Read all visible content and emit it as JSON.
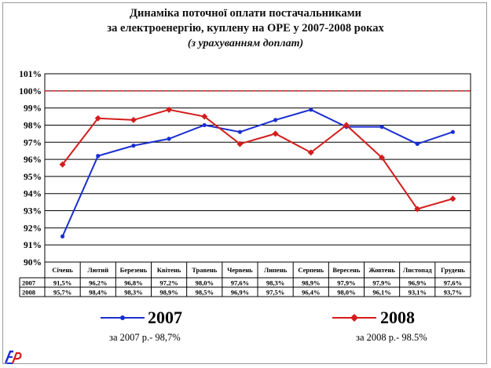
{
  "chart_data": {
    "type": "line",
    "title": "Динаміка поточної оплати постачальниками",
    "subtitle": "за електроенергію, куплену на ОРЕ у 2007-2008 роках",
    "note": "(з урахуванням доплат)",
    "categories": [
      "Січень",
      "Лютий",
      "Березень",
      "Квітень",
      "Травень",
      "Червень",
      "Липень",
      "Серпень",
      "Вересень",
      "Жовтень",
      "Листопад",
      "Грудень"
    ],
    "y_ticks": [
      "90%",
      "91%",
      "92%",
      "93%",
      "94%",
      "95%",
      "96%",
      "97%",
      "98%",
      "99%",
      "100%",
      "101%"
    ],
    "ylim": [
      90,
      101
    ],
    "reference_line": 100,
    "series": [
      {
        "name": "2007",
        "color": "#1a2fd0",
        "values": [
          91.5,
          96.2,
          96.8,
          97.2,
          98.0,
          97.6,
          98.3,
          98.9,
          97.9,
          97.9,
          96.9,
          97.6
        ],
        "labels": [
          "91,5%",
          "96,2%",
          "96,8%",
          "97,2%",
          "98,0%",
          "97,6%",
          "98,3%",
          "98,9%",
          "97,9%",
          "97,9%",
          "96,9%",
          "97,6%"
        ]
      },
      {
        "name": "2008",
        "color": "#d41c1c",
        "values": [
          95.7,
          98.4,
          98.3,
          98.9,
          98.5,
          96.9,
          97.5,
          96.4,
          98.0,
          96.1,
          93.1,
          93.7
        ],
        "labels": [
          "95,7%",
          "98,4%",
          "98,3%",
          "98,9%",
          "98,5%",
          "96,9%",
          "97,5%",
          "96,4%",
          "98,0%",
          "96,1%",
          "93,1%",
          "93,7%"
        ]
      }
    ],
    "grid": true
  },
  "legend": {
    "s2007_label": "2007",
    "s2008_label": "2008",
    "avg_2007": "за 2007 р.- 98,7%",
    "avg_2008": "за 2008 р.- 98.5%"
  },
  "logo": {
    "text": "EP"
  }
}
